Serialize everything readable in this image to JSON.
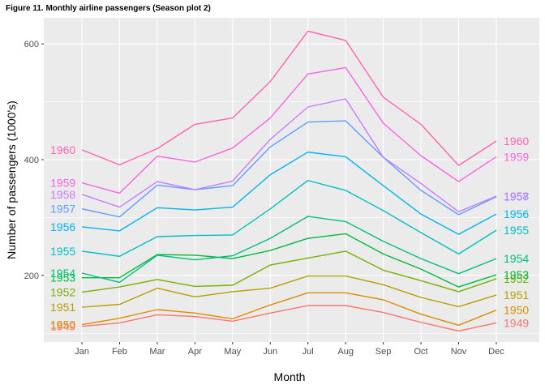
{
  "figure_title": "Figure 11. Monthly airline passengers (Season plot 2)",
  "chart_data": {
    "type": "line",
    "xlabel": "Month",
    "ylabel": "Number of passengers (1000's)",
    "categories": [
      "Jan",
      "Feb",
      "Mar",
      "Apr",
      "May",
      "Jun",
      "Jul",
      "Aug",
      "Sep",
      "Oct",
      "Nov",
      "Dec"
    ],
    "y_ticks": [
      200,
      400,
      600
    ],
    "ylim": [
      85,
      645
    ],
    "grid": true,
    "legend": "none (series labelled at both ends of each line)",
    "series": [
      {
        "name": "1949",
        "color": "#F8766D",
        "values": [
          112,
          118,
          132,
          129,
          121,
          135,
          148,
          148,
          136,
          119,
          104,
          118
        ]
      },
      {
        "name": "1950",
        "color": "#DE8C00",
        "values": [
          115,
          126,
          141,
          135,
          125,
          149,
          170,
          170,
          158,
          133,
          114,
          140
        ]
      },
      {
        "name": "1951",
        "color": "#B79F00",
        "values": [
          145,
          150,
          178,
          163,
          172,
          178,
          199,
          199,
          184,
          162,
          146,
          166
        ]
      },
      {
        "name": "1952",
        "color": "#7CAE00",
        "values": [
          171,
          180,
          193,
          181,
          183,
          218,
          230,
          242,
          209,
          191,
          172,
          194
        ]
      },
      {
        "name": "1953",
        "color": "#00BA38",
        "values": [
          196,
          196,
          236,
          235,
          229,
          243,
          264,
          272,
          237,
          211,
          180,
          201
        ]
      },
      {
        "name": "1954",
        "color": "#00BF7D",
        "values": [
          204,
          188,
          235,
          227,
          234,
          264,
          302,
          293,
          259,
          229,
          203,
          229
        ]
      },
      {
        "name": "1955",
        "color": "#00BFC4",
        "values": [
          242,
          233,
          267,
          269,
          270,
          315,
          364,
          347,
          312,
          274,
          237,
          278
        ]
      },
      {
        "name": "1956",
        "color": "#00B4F0",
        "values": [
          284,
          277,
          317,
          313,
          318,
          374,
          413,
          405,
          355,
          306,
          271,
          306
        ]
      },
      {
        "name": "1957",
        "color": "#619CFF",
        "values": [
          315,
          301,
          356,
          348,
          355,
          422,
          465,
          467,
          404,
          347,
          305,
          336
        ]
      },
      {
        "name": "1958",
        "color": "#C77CFF",
        "values": [
          340,
          318,
          362,
          348,
          363,
          435,
          491,
          505,
          404,
          359,
          310,
          337
        ]
      },
      {
        "name": "1959",
        "color": "#F564E3",
        "values": [
          360,
          342,
          406,
          396,
          420,
          472,
          548,
          559,
          463,
          407,
          362,
          405
        ]
      },
      {
        "name": "1960",
        "color": "#FF64B0",
        "values": [
          417,
          391,
          419,
          461,
          472,
          535,
          622,
          606,
          508,
          461,
          390,
          432
        ]
      }
    ]
  }
}
